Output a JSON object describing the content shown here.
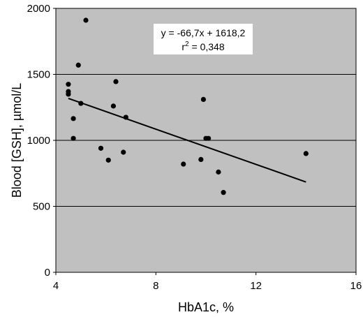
{
  "chart_data": {
    "type": "scatter",
    "xlabel": "HbA1c, %",
    "ylabel": "Blood [GSH], µmol/L",
    "xlim": [
      4,
      16
    ],
    "ylim": [
      0,
      2000
    ],
    "xticks": [
      4,
      8,
      12,
      16
    ],
    "yticks": [
      0,
      500,
      1000,
      1500,
      2000
    ],
    "grid": "horizontal",
    "plot_background": "#c0c0c0",
    "points": [
      {
        "x": 4.5,
        "y": 1425
      },
      {
        "x": 4.5,
        "y": 1370
      },
      {
        "x": 4.5,
        "y": 1350
      },
      {
        "x": 4.7,
        "y": 1165
      },
      {
        "x": 4.7,
        "y": 1015
      },
      {
        "x": 4.9,
        "y": 1570
      },
      {
        "x": 5.0,
        "y": 1280
      },
      {
        "x": 5.2,
        "y": 1910
      },
      {
        "x": 5.8,
        "y": 940
      },
      {
        "x": 6.1,
        "y": 850
      },
      {
        "x": 6.3,
        "y": 1260
      },
      {
        "x": 6.4,
        "y": 1445
      },
      {
        "x": 6.7,
        "y": 910
      },
      {
        "x": 6.8,
        "y": 1175
      },
      {
        "x": 9.1,
        "y": 820
      },
      {
        "x": 9.8,
        "y": 855
      },
      {
        "x": 9.9,
        "y": 1310
      },
      {
        "x": 10.0,
        "y": 1015
      },
      {
        "x": 10.1,
        "y": 1015
      },
      {
        "x": 10.5,
        "y": 760
      },
      {
        "x": 10.7,
        "y": 605
      },
      {
        "x": 14.0,
        "y": 900
      }
    ],
    "trendline": {
      "slope": -66.7,
      "intercept": 1618.2,
      "x_start": 4.5,
      "x_end": 14.0
    },
    "annotation": {
      "equation": "y = -66,7x + 1618,2",
      "r2_prefix": "r",
      "r2_sup": "2",
      "r2_value": " = 0,348"
    }
  }
}
